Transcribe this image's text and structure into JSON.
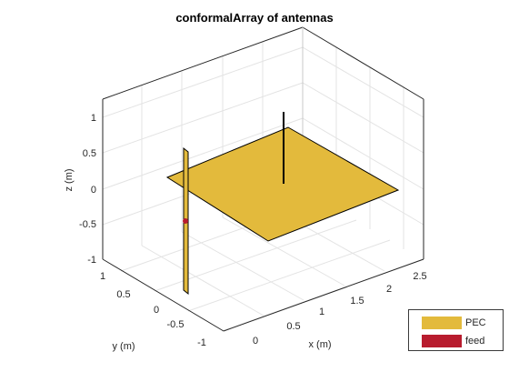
{
  "title": "conformalArray of antennas",
  "axes": {
    "xlabel": "x (m)",
    "ylabel": "y (m)",
    "zlabel": "z (m)",
    "x_ticks": [
      "0",
      "0.5",
      "1",
      "1.5",
      "2",
      "2.5"
    ],
    "y_ticks": [
      "-1",
      "-0.5",
      "0",
      "0.5",
      "1"
    ],
    "z_ticks": [
      "-1",
      "-0.5",
      "0",
      "0.5",
      "1"
    ]
  },
  "legend": {
    "items": [
      {
        "label": "PEC",
        "color": "#E3BA3C"
      },
      {
        "label": "feed",
        "color": "#B81C2E"
      }
    ]
  },
  "colors": {
    "pec": "#E3BA3C",
    "feed": "#B81C2E",
    "grid": "#E3E3E3",
    "axis": "#262626"
  }
}
